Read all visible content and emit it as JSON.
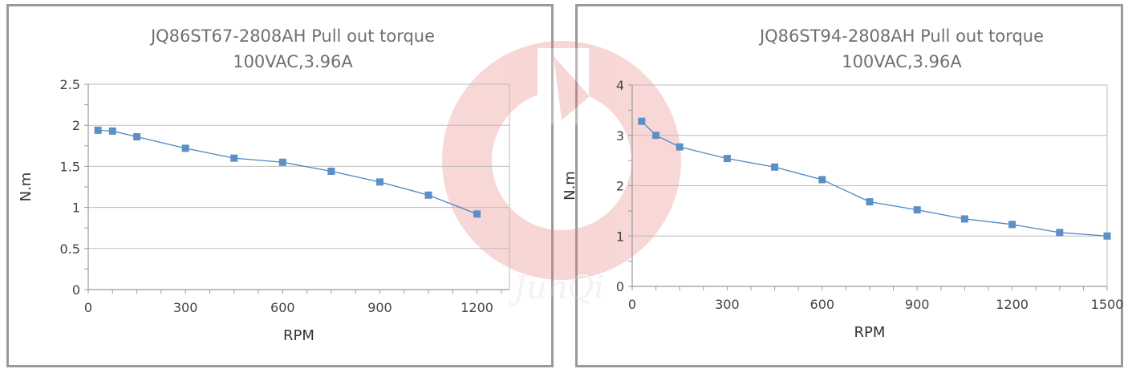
{
  "colors": {
    "series": "#4a86c4",
    "marker": "#5b8fc6",
    "grid": "#bdbdbd",
    "axis": "#9a9a9a",
    "watermark": "#e87a7a"
  },
  "watermark": {
    "text": "JunQi"
  },
  "chart_data": [
    {
      "type": "line",
      "title": "JQ86ST67-2808AH Pull out torque",
      "subtitle": "100VAC,3.96A",
      "xlabel": "RPM",
      "ylabel": "N.m",
      "xlim": [
        0,
        1300
      ],
      "ylim": [
        0,
        2.5
      ],
      "xticks": [
        0,
        300,
        600,
        900,
        1200
      ],
      "xtick_labels": [
        "0",
        "300",
        "600",
        "900",
        "1200"
      ],
      "yticks": [
        0,
        0.5,
        1,
        1.5,
        2,
        2.5
      ],
      "ytick_labels": [
        "0",
        "0.5",
        "1",
        "1.5",
        "2",
        "2.5"
      ],
      "grid": true,
      "series": [
        {
          "x": [
            30,
            75,
            150,
            300,
            450,
            600,
            750,
            900,
            1050,
            1200
          ],
          "y": [
            1.94,
            1.93,
            1.86,
            1.72,
            1.6,
            1.55,
            1.44,
            1.31,
            1.15,
            0.92
          ]
        }
      ]
    },
    {
      "type": "line",
      "title": "JQ86ST94-2808AH Pull out torque",
      "subtitle": "100VAC,3.96A",
      "xlabel": "RPM",
      "ylabel": "N.m",
      "xlim": [
        0,
        1500
      ],
      "ylim": [
        0,
        4
      ],
      "xticks": [
        0,
        300,
        600,
        900,
        1200,
        1500
      ],
      "xtick_labels": [
        "0",
        "300",
        "600",
        "900",
        "1200",
        "1500"
      ],
      "yticks": [
        0,
        1,
        2,
        3,
        4
      ],
      "ytick_labels": [
        "0",
        "1",
        "2",
        "3",
        "4"
      ],
      "grid": true,
      "series": [
        {
          "x": [
            30,
            75,
            150,
            300,
            450,
            600,
            750,
            900,
            1050,
            1200,
            1350,
            1500
          ],
          "y": [
            3.28,
            3.0,
            2.77,
            2.54,
            2.37,
            2.12,
            1.68,
            1.52,
            1.34,
            1.23,
            1.07,
            1.0
          ]
        }
      ]
    }
  ]
}
